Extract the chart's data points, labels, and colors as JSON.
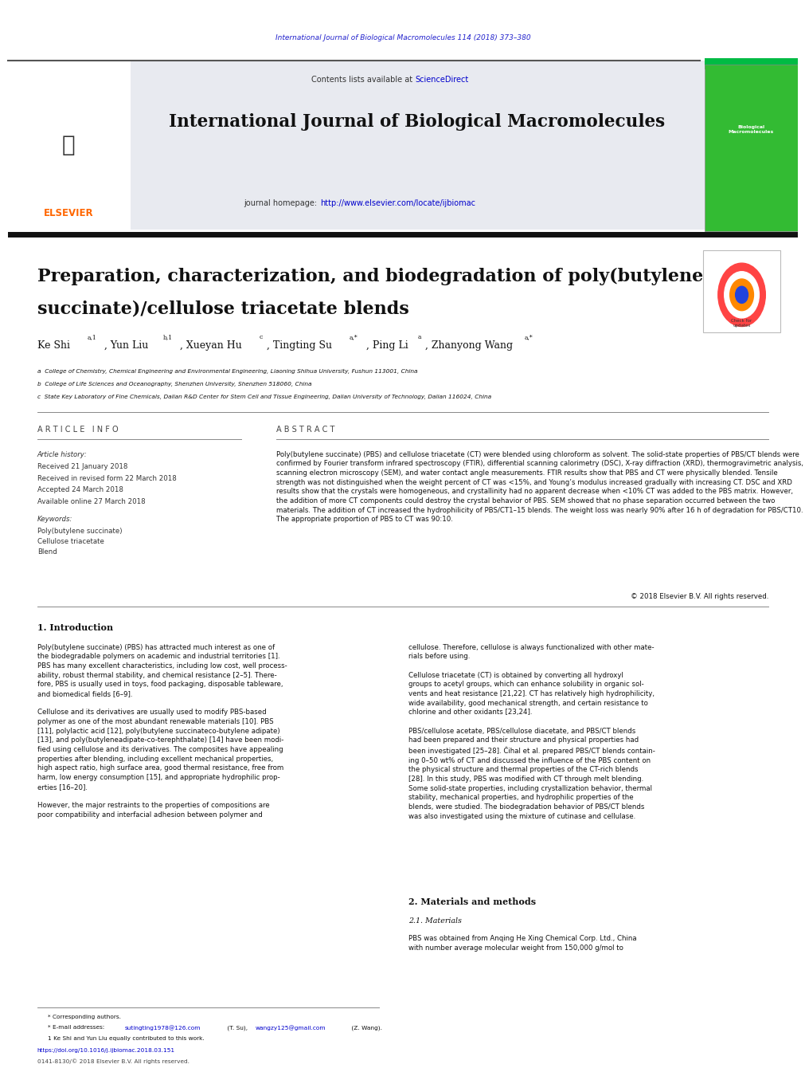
{
  "page_width": 9.92,
  "page_height": 13.23,
  "background_color": "#ffffff",
  "journal_ref_color": "#2222cc",
  "journal_ref": "International Journal of Biological Macromolecules 114 (2018) 373–380",
  "header_bg": "#e8e8f0",
  "contents_text": "Contents lists available at ",
  "sciencedirect_text": "ScienceDirect",
  "sciencedirect_color": "#0000cc",
  "journal_title": "International Journal of Biological Macromolecules",
  "journal_homepage_text": "journal homepage: ",
  "journal_url": "http://www.elsevier.com/locate/ijbiomac",
  "journal_url_color": "#0000cc",
  "elsevier_color": "#ff6600",
  "paper_title_line1": "Preparation, characterization, and biodegradation of poly(butylene",
  "paper_title_line2": "succinate)/cellulose triacetate blends",
  "affil_a": "a  College of Chemistry, Chemical Engineering and Environmental Engineering, Liaoning Shihua University, Fushun 113001, China",
  "affil_b": "b  College of Life Sciences and Oceanography, Shenzhen University, Shenzhen 518060, China",
  "affil_c": "c  State Key Laboratory of Fine Chemicals, Dalian R&D Center for Stem Cell and Tissue Engineering, Dalian University of Technology, Dalian 116024, China",
  "article_info_title": "A R T I C L E   I N F O",
  "article_history_title": "Article history:",
  "received": "Received 21 January 2018",
  "revised": "Received in revised form 22 March 2018",
  "accepted": "Accepted 24 March 2018",
  "available": "Available online 27 March 2018",
  "keywords_title": "Keywords:",
  "keyword1": "Poly(butylene succinate)",
  "keyword2": "Cellulose triacetate",
  "keyword3": "Blend",
  "abstract_title": "A B S T R A C T",
  "abstract_text": "Poly(butylene succinate) (PBS) and cellulose triacetate (CT) were blended using chloroform as solvent. The solid-state properties of PBS/CT blends were confirmed by Fourier transform infrared spectroscopy (FTIR), differential scanning calorimetry (DSC), X-ray diffraction (XRD), thermogravimetric analysis, scanning electron microscopy (SEM), and water contact angle measurements. FTIR results show that PBS and CT were physically blended. Tensile strength was not distinguished when the weight percent of CT was <15%, and Young’s modulus increased gradually with increasing CT. DSC and XRD results show that the crystals were homogeneous, and crystallinity had no apparent decrease when <10% CT was added to the PBS matrix. However, the addition of more CT components could destroy the crystal behavior of PBS. SEM showed that no phase separation occurred between the two materials. The addition of CT increased the hydrophilicity of PBS/CT1–15 blends. The weight loss was nearly 90% after 16 h of degradation for PBS/CT10. The appropriate proportion of PBS to CT was 90:10.",
  "copyright": "© 2018 Elsevier B.V. All rights reserved.",
  "intro_title": "1. Introduction",
  "intro_col1": "Poly(butylene succinate) (PBS) has attracted much interest as one of\nthe biodegradable polymers on academic and industrial territories [1].\nPBS has many excellent characteristics, including low cost, well process-\nability, robust thermal stability, and chemical resistance [2–5]. There-\nfore, PBS is usually used in toys, food packaging, disposable tableware,\nand biomedical fields [6–9].\n\nCellulose and its derivatives are usually used to modify PBS-based\npolymer as one of the most abundant renewable materials [10]. PBS\n[11], polylactic acid [12], poly(butylene succinateco-butylene adipate)\n[13], and poly(butyleneadipate-co-terephthalate) [14] have been modi-\nfied using cellulose and its derivatives. The composites have appealing\nproperties after blending, including excellent mechanical properties,\nhigh aspect ratio, high surface area, good thermal resistance, free from\nharm, low energy consumption [15], and appropriate hydrophilic prop-\nerties [16–20].\n\nHowever, the major restraints to the properties of compositions are\npoor compatibility and interfacial adhesion between polymer and",
  "intro_col2": "cellulose. Therefore, cellulose is always functionalized with other mate-\nrials before using.\n\nCellulose triacetate (CT) is obtained by converting all hydroxyl\ngroups to acetyl groups, which can enhance solubility in organic sol-\nvents and heat resistance [21,22]. CT has relatively high hydrophilicity,\nwide availability, good mechanical strength, and certain resistance to\nchlorine and other oxidants [23,24].\n\nPBS/cellulose acetate, PBS/cellulose diacetate, and PBS/CT blends\nhad been prepared and their structure and physical properties had\nbeen investigated [25–28]. Čihal et al. prepared PBS/CT blends contain-\ning 0–50 wt% of CT and discussed the influence of the PBS content on\nthe physical structure and thermal properties of the CT-rich blends\n[28]. In this study, PBS was modified with CT through melt blending.\nSome solid-state properties, including crystallization behavior, thermal\nstability, mechanical properties, and hydrophilic properties of the\nblends, were studied. The biodegradation behavior of PBS/CT blends\nwas also investigated using the mixture of cutinase and cellulase.",
  "materials_title": "2. Materials and methods",
  "materials_sub": "2.1. Materials",
  "materials_text": "PBS was obtained from Anqing He Xing Chemical Corp. Ltd., China\nwith number average molecular weight from 150,000 g/mol to",
  "footer_corresponding": "* Corresponding authors.",
  "footer_footnote": "1 Ke Shi and Yun Liu equally contributed to this work.",
  "footer_doi": "https://doi.org/10.1016/j.ijbiomac.2018.03.151",
  "footer_issn": "0141-8130/© 2018 Elsevier B.V. All rights reserved.",
  "link_color": "#0000cc"
}
